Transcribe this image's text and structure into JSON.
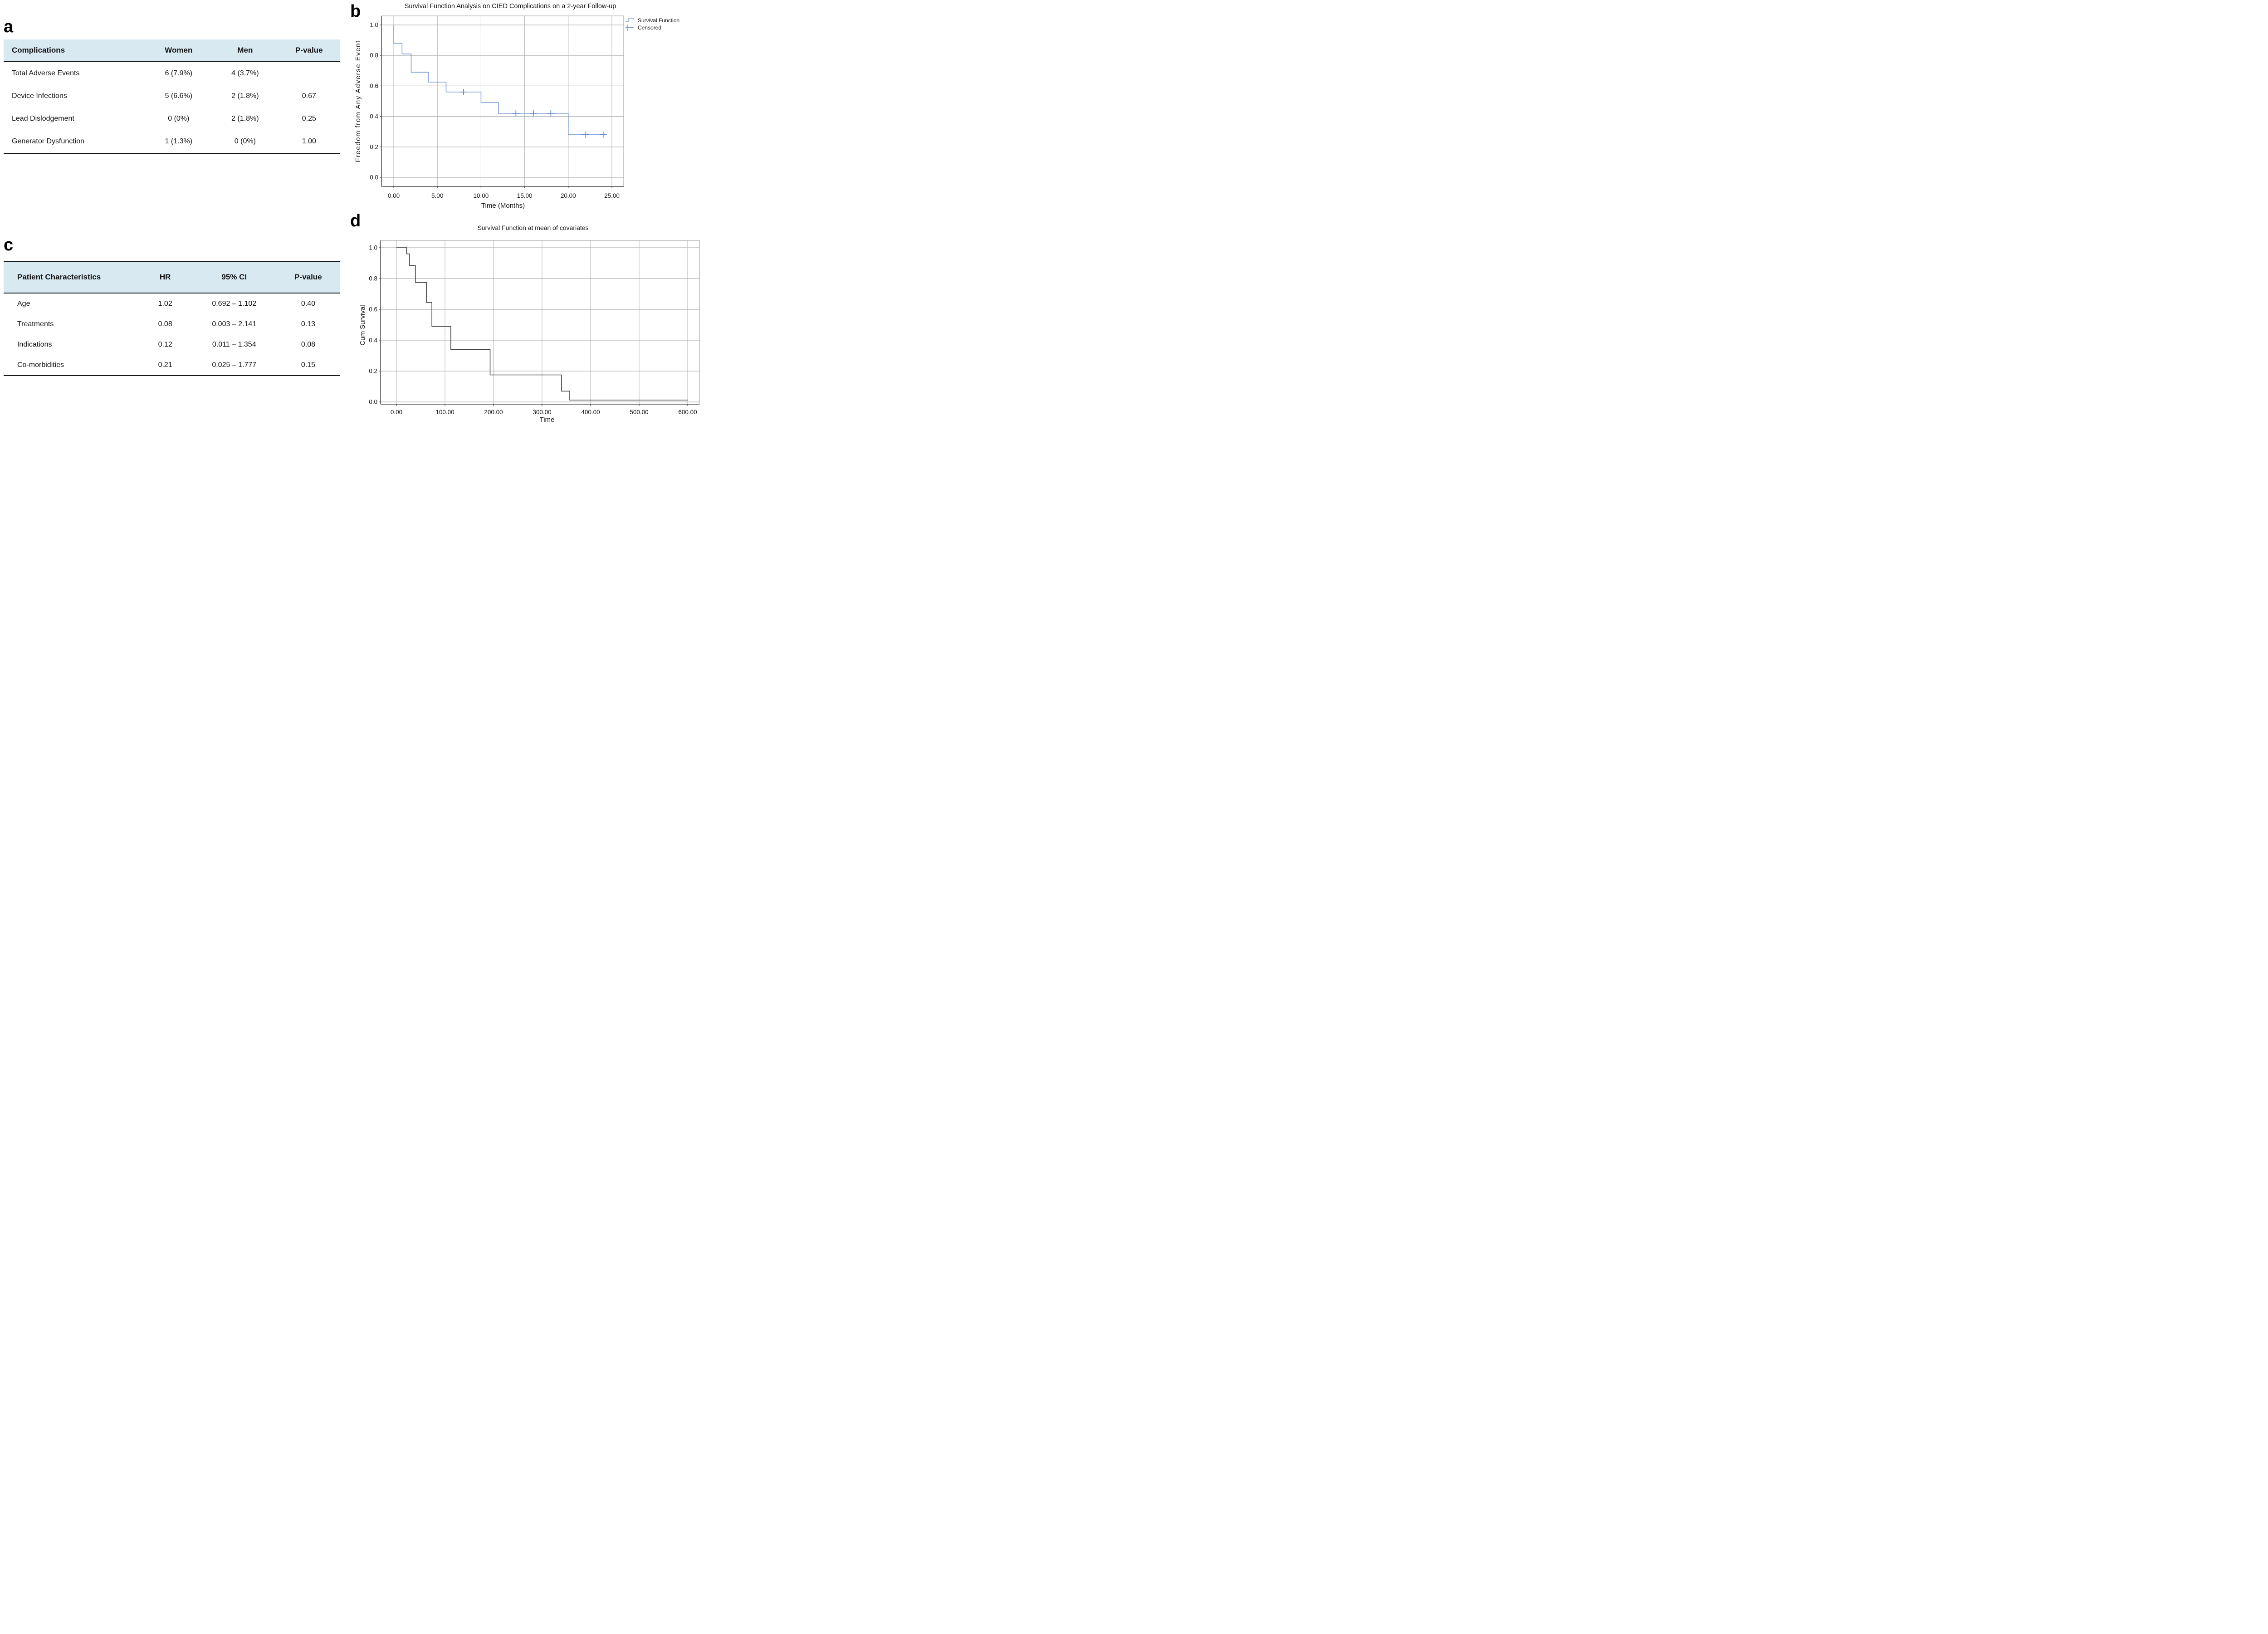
{
  "panels": {
    "a": {
      "label": "a",
      "table": {
        "headers": [
          "Complications",
          "Women",
          "Men",
          "P-value"
        ],
        "rows": [
          {
            "cells": [
              "Total Adverse Events",
              "6 (7.9%)",
              "4 (3.7%)",
              ""
            ]
          },
          {
            "cells": [
              "Device Infections",
              "5 (6.6%)",
              "2 (1.8%)",
              "0.67"
            ]
          },
          {
            "cells": [
              "Lead Dislodgement",
              "0 (0%)",
              "2 (1.8%)",
              "0.25"
            ]
          },
          {
            "cells": [
              "Generator Dysfunction",
              "1 (1.3%)",
              "0 (0%)",
              "1.00"
            ]
          }
        ]
      }
    },
    "b": {
      "label": "b"
    },
    "c": {
      "label": "c",
      "table": {
        "headers": [
          "Patient Characteristics",
          "HR",
          "95% CI",
          "P-value"
        ],
        "rows": [
          {
            "cells": [
              "Age",
              "1.02",
              "0.692 – 1.102",
              "0.40"
            ]
          },
          {
            "cells": [
              "Treatments",
              "0.08",
              "0.003 – 2.141",
              "0.13"
            ]
          },
          {
            "cells": [
              "Indications",
              "0.12",
              "0.011 – 1.354",
              "0.08"
            ]
          },
          {
            "cells": [
              "Co-morbidities",
              "0.21",
              "0.025 – 1.777",
              "0.15"
            ]
          }
        ]
      }
    },
    "d": {
      "label": "d"
    }
  },
  "chart_data": [
    {
      "id": "b",
      "type": "line",
      "subtype": "step",
      "title": "Survival Function Analysis on CIED Complications on a 2-year Follow-up",
      "xlabel": "Time (Months)",
      "ylabel": "Freedom from Any Adverse Event",
      "xlim": [
        0,
        25
      ],
      "ylim": [
        0,
        1
      ],
      "grid": true,
      "legend_position": "top-right",
      "xticks": [
        0,
        5,
        10,
        15,
        20,
        25
      ],
      "xtick_labels": [
        "0.00",
        "5.00",
        "10.00",
        "15.00",
        "20.00",
        "25.00"
      ],
      "yticks": [
        0,
        0.2,
        0.4,
        0.6,
        0.8,
        1.0
      ],
      "ytick_labels": [
        "0.0",
        "0.2",
        "0.4",
        "0.6",
        "0.8",
        "1.0"
      ],
      "legend": [
        {
          "label": "Survival Function",
          "marker": "step"
        },
        {
          "label": "Censored",
          "marker": "plus"
        }
      ],
      "series": [
        {
          "name": "Survival Function",
          "color": "#7f9fd2",
          "points": [
            [
              0,
              1.0
            ],
            [
              0,
              0.88
            ],
            [
              0.95,
              0.88
            ],
            [
              0.95,
              0.81
            ],
            [
              2,
              0.81
            ],
            [
              2,
              0.69
            ],
            [
              4,
              0.69
            ],
            [
              4,
              0.625
            ],
            [
              6,
              0.625
            ],
            [
              6,
              0.56
            ],
            [
              10,
              0.56
            ],
            [
              10,
              0.49
            ],
            [
              12,
              0.49
            ],
            [
              12,
              0.42
            ],
            [
              20,
              0.42
            ],
            [
              20,
              0.28
            ],
            [
              24.2,
              0.28
            ]
          ]
        }
      ],
      "censored": {
        "name": "Censored",
        "color": "#5b82c4",
        "points": [
          [
            8,
            0.56
          ],
          [
            14,
            0.42
          ],
          [
            16,
            0.42
          ],
          [
            18,
            0.42
          ],
          [
            22,
            0.28
          ],
          [
            24,
            0.28
          ]
        ]
      }
    },
    {
      "id": "d",
      "type": "line",
      "subtype": "step",
      "title": "Survival Function at mean of covariates",
      "xlabel": "Time",
      "ylabel": "Cum Survival",
      "xlim": [
        0,
        600
      ],
      "ylim": [
        0,
        1
      ],
      "grid": true,
      "xticks": [
        0,
        100,
        200,
        300,
        400,
        500,
        600
      ],
      "xtick_labels": [
        "0.00",
        "100.00",
        "200.00",
        "300.00",
        "400.00",
        "500.00",
        "600.00"
      ],
      "yticks": [
        0,
        0.2,
        0.4,
        0.6,
        0.8,
        1.0
      ],
      "ytick_labels": [
        "0.0",
        "0.2",
        "0.4",
        "0.6",
        "0.8",
        "1.0"
      ],
      "series": [
        {
          "name": "Survival Function",
          "color": "#3f3f3f",
          "points": [
            [
              0,
              1.0
            ],
            [
              21,
              1.0
            ],
            [
              21,
              0.96
            ],
            [
              27,
              0.96
            ],
            [
              27,
              0.885
            ],
            [
              39,
              0.885
            ],
            [
              39,
              0.775
            ],
            [
              62,
              0.775
            ],
            [
              62,
              0.645
            ],
            [
              73,
              0.645
            ],
            [
              73,
              0.49
            ],
            [
              112,
              0.49
            ],
            [
              112,
              0.34
            ],
            [
              193,
              0.34
            ],
            [
              193,
              0.175
            ],
            [
              340,
              0.175
            ],
            [
              340,
              0.07
            ],
            [
              357,
              0.07
            ],
            [
              357,
              0.012
            ],
            [
              600,
              0.012
            ]
          ]
        }
      ]
    }
  ],
  "colors": {
    "table_header_bg": "#d8e9f2",
    "survival_line": "#7f9fd2",
    "censored_marker": "#5b82c4",
    "cum_survival_line": "#3f3f3f",
    "gridline": "#b3b3b3",
    "plot_frame": "#9a9a9a",
    "axis_line": "#4d4d4d",
    "text": "#141414"
  }
}
